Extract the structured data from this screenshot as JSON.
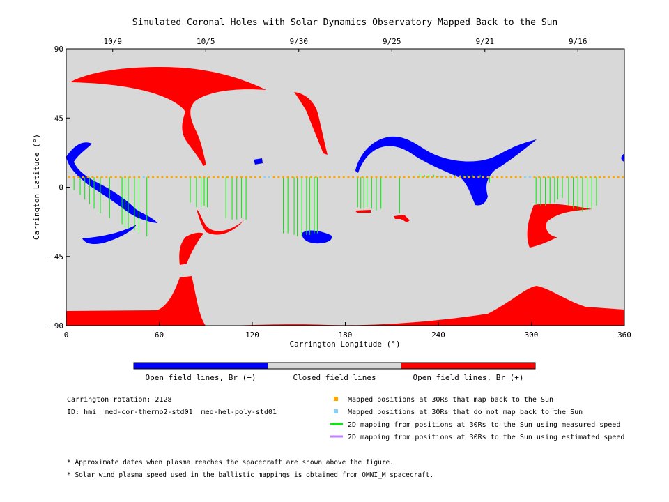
{
  "chart_data": {
    "type": "map",
    "title": "Simulated Coronal Holes with Solar Dynamics Observatory Mapped Back to the Sun",
    "xlabel": "Carrington Longitude (°)",
    "ylabel": "Carrington Latitude (°)",
    "xlim": [
      0,
      360
    ],
    "ylim": [
      -90,
      90
    ],
    "x_ticks": [
      "0",
      "60",
      "120",
      "180",
      "240",
      "300",
      "360"
    ],
    "y_ticks": [
      "90",
      "45",
      "0",
      "−45",
      "−90"
    ],
    "top_axis_dates": [
      {
        "label": "10/9",
        "lon": 30
      },
      {
        "label": "10/5",
        "lon": 90
      },
      {
        "label": "9/30",
        "lon": 150
      },
      {
        "label": "9/25",
        "lon": 210
      },
      {
        "label": "9/21",
        "lon": 270
      },
      {
        "label": "9/16",
        "lon": 330
      }
    ],
    "colorbar": [
      {
        "label": "Open field lines, Br (−)",
        "color": "#0000ff"
      },
      {
        "label": "Closed field lines",
        "color": "#d8d8d8"
      },
      {
        "label": "Open field lines, Br (+)",
        "color": "#ff0000"
      }
    ],
    "colors": {
      "background": "#d8d8d8",
      "positive": "#ff0000",
      "negative": "#0000ff",
      "mapped": "#ffa500",
      "unmapped": "#87cefa",
      "measured": "#00ee00",
      "estimated": "#c080ff"
    },
    "mapped_latitude": 6.5,
    "unmapped_lons": [
      49,
      128,
      131,
      296,
      298
    ],
    "field_line_mappings": [
      [
        5,
        -2
      ],
      [
        9,
        -5
      ],
      [
        12,
        -8
      ],
      [
        15,
        -11
      ],
      [
        18,
        -14
      ],
      [
        22,
        -17
      ],
      [
        28,
        -20
      ],
      [
        36,
        -24
      ],
      [
        38,
        -26
      ],
      [
        40,
        -27
      ],
      [
        44,
        -28
      ],
      [
        47,
        -30
      ],
      [
        52,
        -32
      ],
      [
        80,
        -10
      ],
      [
        84,
        -13
      ],
      [
        87,
        -13
      ],
      [
        89,
        -12
      ],
      [
        91,
        -13
      ],
      [
        103,
        -20
      ],
      [
        107,
        -21
      ],
      [
        110,
        -21
      ],
      [
        113,
        -20
      ],
      [
        116,
        -21
      ],
      [
        140,
        -30
      ],
      [
        143,
        -30
      ],
      [
        147,
        -31
      ],
      [
        149,
        -32
      ],
      [
        152,
        -32
      ],
      [
        155,
        -31
      ],
      [
        157,
        -31
      ],
      [
        160,
        -30
      ],
      [
        162,
        -30
      ],
      [
        188,
        -13
      ],
      [
        190,
        -14
      ],
      [
        192,
        -14
      ],
      [
        194,
        -13
      ],
      [
        197,
        -14
      ],
      [
        200,
        -15
      ],
      [
        203,
        -14
      ],
      [
        215,
        -17
      ],
      [
        228,
        9
      ],
      [
        231,
        8
      ],
      [
        234,
        8
      ],
      [
        237,
        8
      ],
      [
        240,
        7
      ],
      [
        243,
        7
      ],
      [
        251,
        8
      ],
      [
        254,
        8
      ],
      [
        256,
        8
      ],
      [
        259,
        8
      ],
      [
        262,
        8
      ],
      [
        267,
        8
      ],
      [
        271,
        6
      ],
      [
        273,
        3
      ],
      [
        303,
        -11
      ],
      [
        306,
        -12
      ],
      [
        309,
        -12
      ],
      [
        312,
        -11
      ],
      [
        315,
        -10
      ],
      [
        317,
        -8
      ],
      [
        320,
        -7
      ],
      [
        324,
        -12
      ],
      [
        327,
        -14
      ],
      [
        330,
        -15
      ],
      [
        333,
        -16
      ],
      [
        336,
        -15
      ],
      [
        339,
        -14
      ],
      [
        342,
        -12
      ]
    ],
    "legend": [
      {
        "label": "Mapped positions at 30Rs that map back to the Sun",
        "color": "#ffa500",
        "kind": "square"
      },
      {
        "label": "Mapped positions at 30Rs that do not map back to the Sun",
        "color": "#87cefa",
        "kind": "square"
      },
      {
        "label": "2D mapping from positions at 30Rs to the Sun using measured speed",
        "color": "#00ee00",
        "kind": "line"
      },
      {
        "label": "2D mapping from positions at 30Rs to the Sun using estimated speed",
        "color": "#c080ff",
        "kind": "line"
      }
    ]
  },
  "info": {
    "rotation": "Carrington rotation: 2128",
    "id": "ID: hmi__med-cor-thermo2-std01__med-hel-poly-std01"
  },
  "notes": [
    "* Approximate dates when plasma reaches the spacecraft are shown above the figure.",
    "* Solar wind plasma speed used in the ballistic mappings is obtained from OMNI_M spacecraft."
  ]
}
